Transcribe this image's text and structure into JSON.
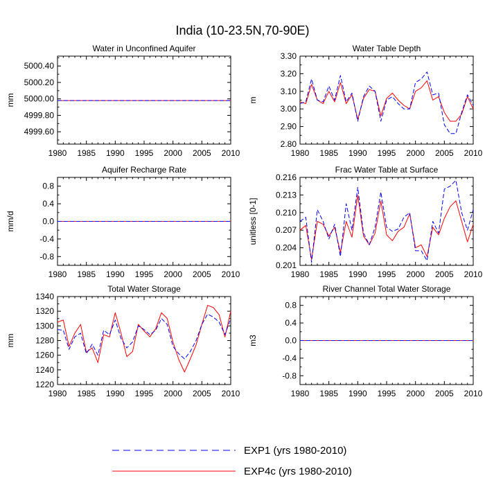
{
  "figure": {
    "title": "India (10-23.5N,70-90E)"
  },
  "legend": {
    "placement": "bottom-center",
    "items": [
      {
        "label": "EXP1 (yrs 1980-2010)",
        "color": "#0000ff",
        "dash": "dashed"
      },
      {
        "label": "EXP4c (yrs 1980-2010)",
        "color": "#ff0000",
        "dash": "solid"
      }
    ]
  },
  "chart_data": [
    {
      "type": "line",
      "title": "Water in Unconfined Aquifer",
      "ylabel": "mm",
      "xlim": [
        1980,
        2010
      ],
      "ylim": [
        4999.45,
        5000.52
      ],
      "xticks": [
        1980,
        1985,
        1990,
        1995,
        2000,
        2005,
        2010
      ],
      "yticks": [
        4999.6,
        4999.8,
        5000.0,
        5000.2,
        5000.4
      ],
      "ytick_labels": [
        "4999.60",
        "4999.80",
        "5000.00",
        "5000.20",
        "5000.40"
      ],
      "x_start": 1980,
      "series": [
        {
          "name": "EXP1 (yrs 1980-2010)",
          "color": "#0000ff",
          "dash": "dashed",
          "values": [
            4999.98,
            4999.98,
            4999.98,
            4999.98,
            4999.98,
            4999.98,
            4999.98,
            4999.98,
            4999.98,
            4999.98,
            4999.98,
            4999.98,
            4999.98,
            4999.98,
            4999.98,
            4999.98,
            4999.98,
            4999.98,
            4999.98,
            4999.98,
            4999.98,
            4999.98,
            4999.98,
            4999.98,
            4999.98,
            4999.98,
            4999.98,
            4999.98,
            4999.98,
            4999.98,
            4999.98
          ]
        },
        {
          "name": "EXP4c (yrs 1980-2010)",
          "color": "#ff0000",
          "dash": "solid",
          "values": [
            4999.98,
            4999.98,
            4999.98,
            4999.98,
            4999.98,
            4999.98,
            4999.98,
            4999.98,
            4999.98,
            4999.98,
            4999.98,
            4999.98,
            4999.98,
            4999.98,
            4999.98,
            4999.98,
            4999.98,
            4999.98,
            4999.98,
            4999.98,
            4999.98,
            4999.98,
            4999.98,
            4999.98,
            4999.98,
            4999.98,
            4999.98,
            4999.98,
            4999.98,
            4999.98,
            4999.98
          ]
        }
      ]
    },
    {
      "type": "line",
      "title": "Water Table Depth",
      "ylabel": "m",
      "xlim": [
        1980,
        2010
      ],
      "ylim": [
        2.8,
        3.3
      ],
      "xticks": [
        1980,
        1985,
        1990,
        1995,
        2000,
        2005,
        2010
      ],
      "yticks": [
        2.8,
        2.9,
        3.0,
        3.1,
        3.2,
        3.3
      ],
      "ytick_labels": [
        "2.80",
        "2.90",
        "3.00",
        "3.10",
        "3.20",
        "3.30"
      ],
      "x_start": 1980,
      "series": [
        {
          "name": "EXP1 (yrs 1980-2010)",
          "color": "#0000ff",
          "dash": "dashed",
          "values": [
            3.03,
            3.04,
            3.17,
            3.05,
            3.04,
            3.13,
            3.05,
            3.19,
            3.04,
            3.09,
            2.93,
            3.07,
            3.13,
            3.1,
            2.93,
            3.05,
            3.07,
            3.03,
            3.0,
            3.0,
            3.15,
            3.17,
            3.21,
            3.08,
            3.09,
            2.91,
            2.86,
            2.86,
            2.98,
            3.08,
            3.02
          ]
        },
        {
          "name": "EXP4c (yrs 1980-2010)",
          "color": "#ff0000",
          "dash": "solid",
          "values": [
            3.04,
            3.03,
            3.14,
            3.05,
            3.03,
            3.1,
            3.04,
            3.15,
            3.03,
            3.08,
            2.94,
            3.06,
            3.11,
            3.1,
            2.96,
            3.06,
            3.09,
            3.05,
            3.02,
            3.0,
            3.1,
            3.12,
            3.16,
            3.05,
            3.07,
            2.98,
            2.93,
            2.93,
            2.97,
            3.07,
            3.0
          ]
        }
      ]
    },
    {
      "type": "line",
      "title": "Aquifer Recharge Rate",
      "ylabel": "mm/d",
      "xlim": [
        1980,
        2010
      ],
      "ylim": [
        -1.0,
        1.0
      ],
      "xticks": [
        1980,
        1985,
        1990,
        1995,
        2000,
        2005,
        2010
      ],
      "yticks": [
        -0.8,
        -0.4,
        0.0,
        0.4,
        0.8
      ],
      "ytick_labels": [
        "-0.8",
        "-0.4",
        "0.0",
        "0.4",
        "0.8"
      ],
      "x_start": 1980,
      "series": [
        {
          "name": "EXP1 (yrs 1980-2010)",
          "color": "#0000ff",
          "dash": "dashed",
          "values": [
            0,
            0,
            0,
            0,
            0,
            0,
            0,
            0,
            0,
            0,
            0,
            0,
            0,
            0,
            0,
            0,
            0,
            0,
            0,
            0,
            0,
            0,
            0,
            0,
            0,
            0,
            0,
            0,
            0,
            0,
            0
          ]
        },
        {
          "name": "EXP4c (yrs 1980-2010)",
          "color": "#ff0000",
          "dash": "solid",
          "values": [
            0,
            0,
            0,
            0,
            0,
            0,
            0,
            0,
            0,
            0,
            0,
            0,
            0,
            0,
            0,
            0,
            0,
            0,
            0,
            0,
            0,
            0,
            0,
            0,
            0,
            0,
            0,
            0,
            0,
            0,
            0
          ]
        }
      ]
    },
    {
      "type": "line",
      "title": "Frac Water Table at Surface",
      "ylabel": "unitless [0-1]",
      "xlim": [
        1980,
        2010
      ],
      "ylim": [
        0.201,
        0.216
      ],
      "xticks": [
        1980,
        1985,
        1990,
        1995,
        2000,
        2005,
        2010
      ],
      "yticks": [
        0.201,
        0.204,
        0.207,
        0.21,
        0.213,
        0.216
      ],
      "ytick_labels": [
        "0.201",
        "0.204",
        "0.207",
        "0.210",
        "0.213",
        "0.216"
      ],
      "x_start": 1980,
      "series": [
        {
          "name": "EXP1 (yrs 1980-2010)",
          "color": "#0000ff",
          "dash": "dashed",
          "values": [
            0.2085,
            0.2092,
            0.2015,
            0.2105,
            0.2085,
            0.2055,
            0.208,
            0.2025,
            0.2115,
            0.207,
            0.2143,
            0.2065,
            0.2045,
            0.2075,
            0.2135,
            0.2075,
            0.2068,
            0.2072,
            0.2092,
            0.21,
            0.2035,
            0.2035,
            0.2018,
            0.2085,
            0.2065,
            0.214,
            0.2145,
            0.2155,
            0.21,
            0.207,
            0.2105
          ]
        },
        {
          "name": "EXP4c (yrs 1980-2010)",
          "color": "#ff0000",
          "dash": "solid",
          "values": [
            0.207,
            0.2078,
            0.202,
            0.2085,
            0.208,
            0.206,
            0.2075,
            0.2032,
            0.2085,
            0.2058,
            0.213,
            0.206,
            0.2045,
            0.2065,
            0.212,
            0.2062,
            0.2052,
            0.2068,
            0.2075,
            0.2098,
            0.204,
            0.2045,
            0.2025,
            0.2075,
            0.2062,
            0.209,
            0.211,
            0.212,
            0.2085,
            0.205,
            0.208
          ]
        }
      ]
    },
    {
      "type": "line",
      "title": "Total Water Storage",
      "ylabel": "mm",
      "xlim": [
        1980,
        2010
      ],
      "ylim": [
        1220,
        1340
      ],
      "xticks": [
        1980,
        1985,
        1990,
        1995,
        2000,
        2005,
        2010
      ],
      "yticks": [
        1220,
        1240,
        1260,
        1280,
        1300,
        1320,
        1340
      ],
      "ytick_labels": [
        "1220",
        "1240",
        "1260",
        "1280",
        "1300",
        "1320",
        "1340"
      ],
      "x_start": 1980,
      "series": [
        {
          "name": "EXP1 (yrs 1980-2010)",
          "color": "#0000ff",
          "dash": "dashed",
          "values": [
            1295,
            1294,
            1268,
            1285,
            1290,
            1262,
            1275,
            1260,
            1294,
            1288,
            1308,
            1283,
            1270,
            1278,
            1300,
            1295,
            1288,
            1294,
            1310,
            1302,
            1272,
            1262,
            1255,
            1265,
            1280,
            1302,
            1316,
            1312,
            1305,
            1288,
            1310
          ]
        },
        {
          "name": "EXP4c (yrs 1980-2010)",
          "color": "#ff0000",
          "dash": "solid",
          "values": [
            1305,
            1308,
            1272,
            1290,
            1302,
            1264,
            1270,
            1250,
            1288,
            1285,
            1318,
            1290,
            1258,
            1265,
            1302,
            1293,
            1285,
            1296,
            1318,
            1310,
            1278,
            1254,
            1237,
            1255,
            1274,
            1302,
            1328,
            1325,
            1315,
            1285,
            1320
          ]
        }
      ]
    },
    {
      "type": "line",
      "title": "River Channel Total Water Storage",
      "ylabel": "m3",
      "xlim": [
        1980,
        2010
      ],
      "ylim": [
        -1.0,
        1.0
      ],
      "xticks": [
        1980,
        1985,
        1990,
        1995,
        2000,
        2005,
        2010
      ],
      "yticks": [
        -0.8,
        -0.4,
        0.0,
        0.4,
        0.8
      ],
      "ytick_labels": [
        "-0.8",
        "-0.4",
        "0.0",
        "0.4",
        "0.8"
      ],
      "x_start": 1980,
      "series": [
        {
          "name": "EXP1 (yrs 1980-2010)",
          "color": "#0000ff",
          "dash": "dashed",
          "values": [
            0,
            0,
            0,
            0,
            0,
            0,
            0,
            0,
            0,
            0,
            0,
            0,
            0,
            0,
            0,
            0,
            0,
            0,
            0,
            0,
            0,
            0,
            0,
            0,
            0,
            0,
            0,
            0,
            0,
            0,
            0
          ]
        },
        {
          "name": "EXP4c (yrs 1980-2010)",
          "color": "#ff0000",
          "dash": "solid",
          "values": [
            0,
            0,
            0,
            0,
            0,
            0,
            0,
            0,
            0,
            0,
            0,
            0,
            0,
            0,
            0,
            0,
            0,
            0,
            0,
            0,
            0,
            0,
            0,
            0,
            0,
            0,
            0,
            0,
            0,
            0,
            0
          ]
        }
      ]
    }
  ]
}
